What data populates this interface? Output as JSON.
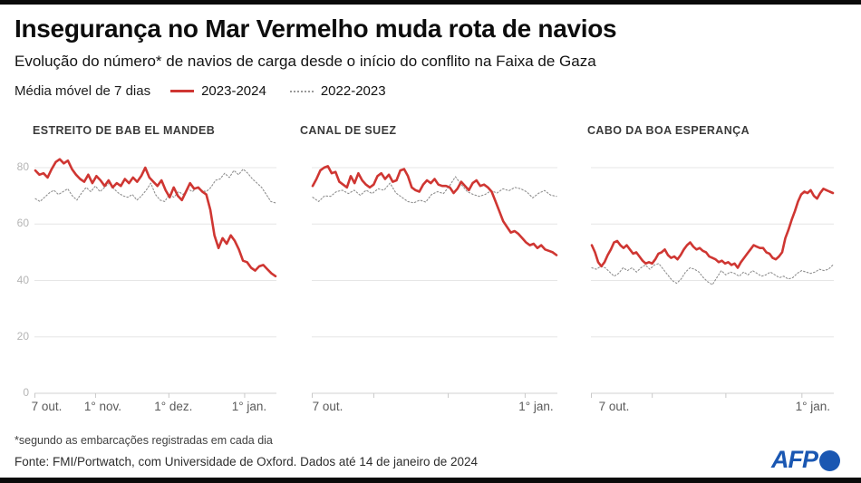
{
  "header": {
    "title": "Insegurança no Mar Vermelho muda rota de navios",
    "subtitle": "Evolução do número* de navios de carga desde o início do conflito na Faixa de Gaza"
  },
  "legend": {
    "label": "Média móvel de 7 dias",
    "series": [
      {
        "label": "2023-2024",
        "color": "#cf3632",
        "style": "solid"
      },
      {
        "label": "2022-2023",
        "color": "#9a9a9a",
        "style": "dotted"
      }
    ]
  },
  "footer": {
    "footnote": "*segundo as embarcações registradas em cada dia",
    "source": "Fonte: FMI/Portwatch, com Universidade de Oxford. Dados até 14 de janeiro de 2024",
    "logo_text": "AFP"
  },
  "colors": {
    "red_line": "#cf3632",
    "gray_line": "#8f8f8f",
    "gridline": "#e6e6e6",
    "axis": "#d0d0d0",
    "tick": "#c9c9c9",
    "afp_blue": "#1a57b2"
  },
  "chart_data": [
    {
      "type": "line",
      "title": "ESTREITO DE BAB EL MANDEB",
      "ylim": [
        0,
        85
      ],
      "y_ticks": [
        0,
        20,
        40,
        60,
        80
      ],
      "y_ticks_shown": true,
      "grid": true,
      "x_total_days": 99,
      "x_tick_days": [
        0,
        25,
        55,
        86
      ],
      "x_tick_labels": [
        {
          "day": 0,
          "label": "7 out."
        },
        {
          "day": 25,
          "label": "1° nov."
        },
        {
          "day": 55,
          "label": "1° dez."
        },
        {
          "day": 86,
          "label": "1° jan."
        }
      ],
      "series": [
        {
          "name": "2023-2024",
          "style": "solid",
          "values": [
            79,
            77.5,
            78,
            76.5,
            79.5,
            82,
            83,
            81.5,
            82.5,
            79.5,
            77.5,
            76,
            75,
            77.5,
            74.5,
            77,
            75.5,
            73.5,
            75.5,
            73,
            74.5,
            73.5,
            76,
            74.5,
            76.5,
            75,
            77,
            80,
            76.5,
            75,
            73.5,
            75.5,
            72,
            69.5,
            73,
            70,
            68.5,
            71.5,
            74.5,
            72.5,
            73,
            71.5,
            70.5,
            65,
            56,
            51.5,
            55,
            53,
            56,
            54,
            51,
            47,
            46.5,
            44.5,
            43.5,
            45,
            45.5,
            44,
            42.5,
            41.5
          ]
        },
        {
          "name": "2022-2023",
          "style": "dotted",
          "values": [
            69,
            68,
            69.5,
            71,
            72,
            70.5,
            71.5,
            72.5,
            70,
            68.5,
            71,
            73,
            71.5,
            73.5,
            71.5,
            73,
            74.5,
            72.5,
            71,
            70,
            69.5,
            70.5,
            68.5,
            70,
            72,
            74.5,
            70.5,
            68.5,
            68,
            70.5,
            69.5,
            71.5,
            70.5,
            72.5,
            71.5,
            73,
            72,
            71.5,
            73,
            75.5,
            76,
            78,
            76.5,
            79,
            77.5,
            79.5,
            78,
            76,
            74.5,
            73,
            70.5,
            68,
            67.5
          ]
        }
      ]
    },
    {
      "type": "line",
      "title": "CANAL DE SUEZ",
      "ylim": [
        0,
        85
      ],
      "y_ticks": [
        0,
        20,
        40,
        60,
        80
      ],
      "y_ticks_shown": false,
      "grid": true,
      "x_total_days": 99,
      "x_tick_days": [
        0,
        25,
        55,
        86
      ],
      "x_tick_labels": [
        {
          "day": 0,
          "label": "7 out."
        },
        {
          "day": 86,
          "label": "1° jan."
        }
      ],
      "series": [
        {
          "name": "2023-2024",
          "style": "solid",
          "values": [
            73.5,
            76,
            79,
            80,
            80.5,
            78,
            78.5,
            75,
            74,
            73,
            77,
            74.5,
            78,
            75.5,
            74,
            73,
            74,
            77,
            78,
            76,
            77.5,
            75,
            75.5,
            79,
            79.5,
            77,
            73,
            72,
            71.5,
            74,
            75.5,
            74.5,
            76,
            74,
            73.5,
            73.5,
            73,
            71,
            72.5,
            75,
            73.5,
            72,
            74.5,
            75.5,
            73.5,
            74,
            73,
            71.5,
            68,
            64.5,
            61,
            59,
            57,
            57.5,
            56.5,
            55,
            53.5,
            52.5,
            53,
            51.5,
            52.5,
            51,
            50.5,
            50,
            49
          ]
        },
        {
          "name": "2022-2023",
          "style": "dotted",
          "values": [
            69.5,
            68,
            70,
            69.8,
            71.5,
            72,
            70.8,
            72,
            70.2,
            72,
            70.8,
            72.5,
            72,
            74.5,
            71,
            69.5,
            68,
            67.5,
            68.5,
            67.8,
            70.5,
            71.5,
            70.8,
            73.5,
            76.8,
            74,
            71.5,
            70.5,
            69.8,
            70.5,
            71.8,
            71,
            72.5,
            71.8,
            73,
            72.5,
            71.4,
            69.3,
            70.9,
            71.9,
            70.3,
            69.8
          ]
        }
      ]
    },
    {
      "type": "line",
      "title": "CABO DA BOA ESPERANÇA",
      "ylim": [
        0,
        85
      ],
      "y_ticks": [
        0,
        20,
        40,
        60,
        80
      ],
      "y_ticks_shown": false,
      "grid": true,
      "x_total_days": 99,
      "x_tick_days": [
        0,
        25,
        55,
        86
      ],
      "x_tick_labels": [
        {
          "day": 0,
          "label": "7 out."
        },
        {
          "day": 86,
          "label": "1° jan."
        }
      ],
      "series": [
        {
          "name": "2023-2024",
          "style": "solid",
          "values": [
            52.5,
            50,
            46.5,
            45,
            46.5,
            49,
            51,
            53.5,
            54,
            52.5,
            51.5,
            52.5,
            51,
            49.5,
            50,
            48.5,
            47,
            46,
            46.5,
            46,
            47.5,
            49.5,
            50,
            51,
            49,
            48,
            48.5,
            47.5,
            49,
            51,
            52.5,
            53.5,
            52,
            51,
            51.5,
            50.5,
            50,
            48.5,
            48,
            47.5,
            46.5,
            47,
            46,
            46.5,
            45.5,
            46,
            44.5,
            46.5,
            48,
            49.5,
            51,
            52.5,
            52,
            51.5,
            51.5,
            50,
            49.5,
            48,
            47.5,
            48.5,
            50,
            55,
            58,
            61.5,
            64.5,
            68,
            70.5,
            71.5,
            71,
            72,
            70,
            69,
            71,
            72.5,
            72,
            71.5,
            71
          ]
        },
        {
          "name": "2022-2023",
          "style": "dotted",
          "values": [
            44.5,
            44,
            45,
            44.5,
            43,
            41.5,
            42.5,
            44.5,
            43.5,
            44.5,
            43,
            44.5,
            45.5,
            44,
            45.5,
            46,
            44,
            42,
            40,
            39,
            40.5,
            43,
            44.5,
            44,
            43,
            41,
            39.5,
            38.5,
            41,
            43.5,
            42,
            43,
            42.5,
            41.5,
            43,
            42,
            43.5,
            42.5,
            41.5,
            42,
            43,
            42,
            41,
            41.5,
            40.5,
            41,
            42.5,
            43.5,
            43,
            42.5,
            43,
            44,
            43.5,
            44,
            45.5
          ]
        }
      ]
    }
  ]
}
